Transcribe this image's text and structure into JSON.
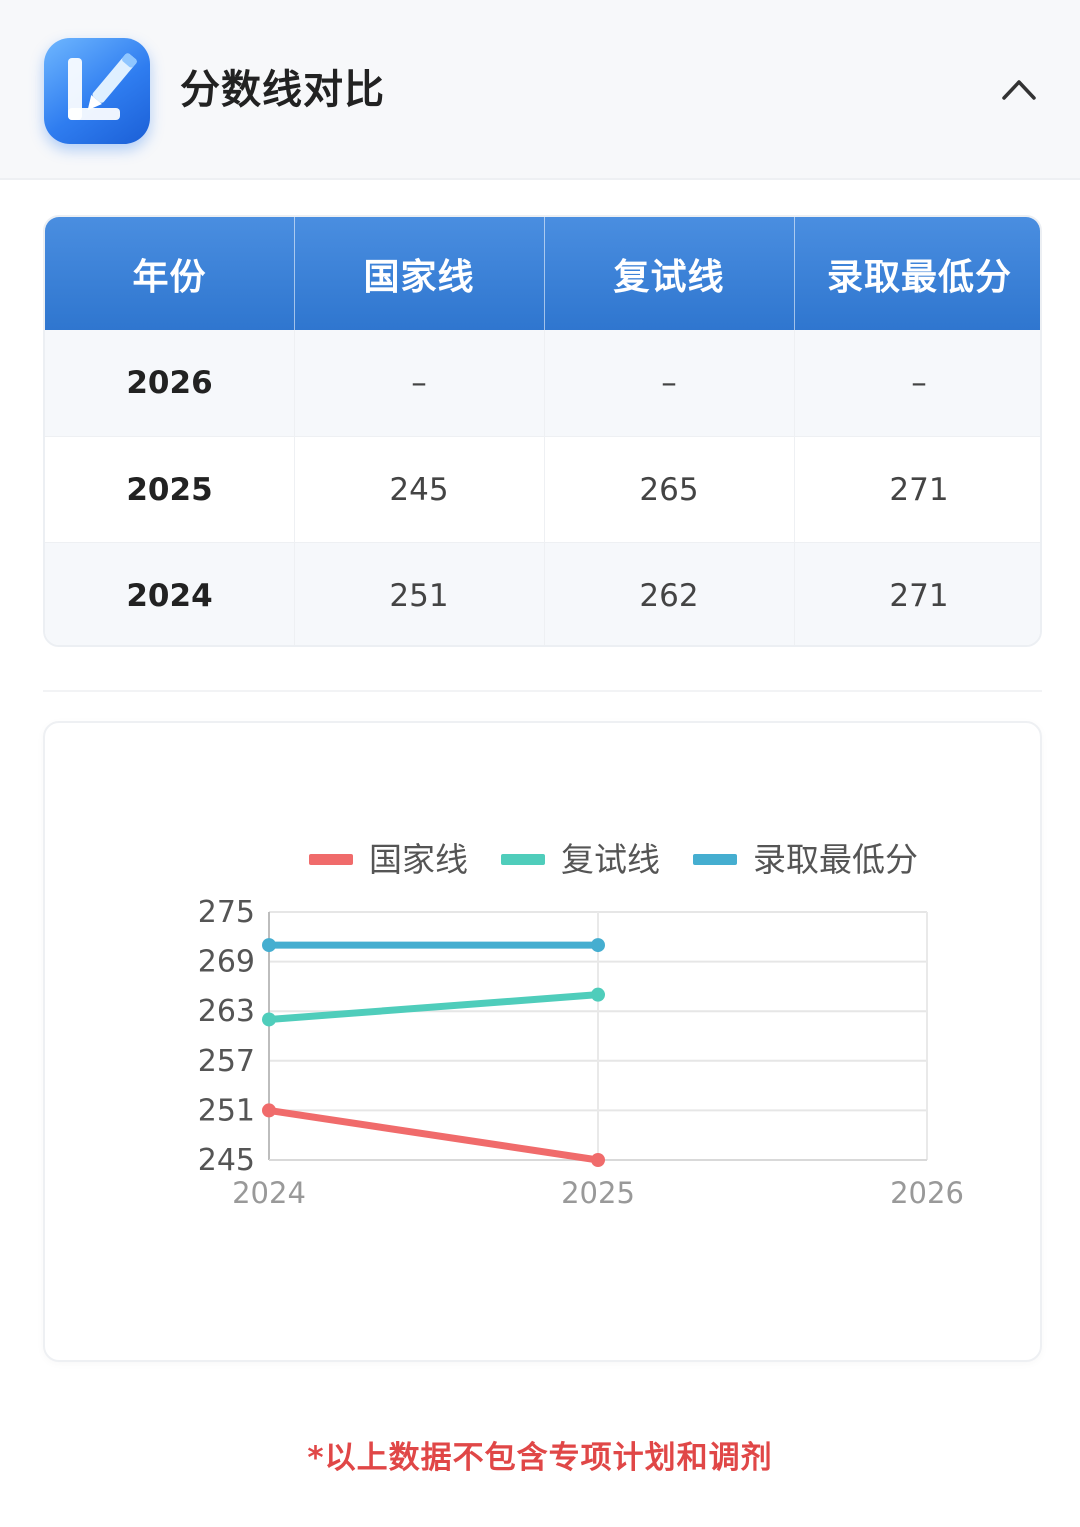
{
  "header": {
    "title": "分数线对比",
    "icon": "pencil-note-icon",
    "collapse_icon": "chevron-up-icon"
  },
  "table": {
    "columns": [
      "年份",
      "国家线",
      "复试线",
      "录取最低分"
    ],
    "rows": [
      [
        "2026",
        "–",
        "–",
        "–"
      ],
      [
        "2025",
        "245",
        "265",
        "271"
      ],
      [
        "2024",
        "251",
        "262",
        "271"
      ]
    ]
  },
  "chart_data": {
    "type": "line",
    "x": [
      "2024",
      "2025",
      "2026"
    ],
    "yticks": [
      245,
      251,
      257,
      263,
      269,
      275
    ],
    "ylim": [
      245,
      275
    ],
    "grid": true,
    "legend_position": "top",
    "series": [
      {
        "name": "国家线",
        "color": "#f06b6b",
        "values": [
          251,
          245,
          null
        ]
      },
      {
        "name": "复试线",
        "color": "#4fcdbb",
        "values": [
          262,
          265,
          null
        ]
      },
      {
        "name": "录取最低分",
        "color": "#45aed0",
        "values": [
          271,
          271,
          null
        ]
      }
    ]
  },
  "footnote": "*以上数据不包含专项计划和调剂"
}
